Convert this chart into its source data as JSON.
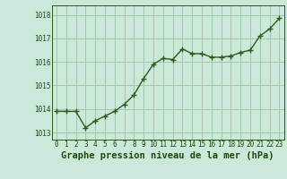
{
  "x": [
    0,
    1,
    2,
    3,
    4,
    5,
    6,
    7,
    8,
    9,
    10,
    11,
    12,
    13,
    14,
    15,
    16,
    17,
    18,
    19,
    20,
    21,
    22,
    23
  ],
  "y": [
    1013.9,
    1013.9,
    1013.9,
    1013.2,
    1013.5,
    1013.7,
    1013.9,
    1014.2,
    1014.6,
    1015.3,
    1015.9,
    1016.15,
    1016.1,
    1016.55,
    1016.35,
    1016.35,
    1016.2,
    1016.2,
    1016.25,
    1016.4,
    1016.5,
    1017.1,
    1017.4,
    1017.85
  ],
  "line_color": "#2d5a1b",
  "marker": "+",
  "marker_size": 4,
  "line_width": 1.0,
  "bg_color": "#cce8d8",
  "grid_color": "#99c4aa",
  "title": "Graphe pression niveau de la mer (hPa)",
  "title_color": "#1a4a10",
  "title_fontsize": 7.5,
  "ylim": [
    1012.7,
    1018.4
  ],
  "yticks": [
    1013,
    1014,
    1015,
    1016,
    1017,
    1018
  ],
  "xtick_labels": [
    "0",
    "1",
    "2",
    "3",
    "4",
    "5",
    "6",
    "7",
    "8",
    "9",
    "10",
    "11",
    "12",
    "13",
    "14",
    "15",
    "16",
    "17",
    "18",
    "19",
    "20",
    "21",
    "22",
    "23"
  ],
  "tick_color": "#1a4a10",
  "tick_fontsize": 5.5,
  "spine_color": "#2d5a1b"
}
